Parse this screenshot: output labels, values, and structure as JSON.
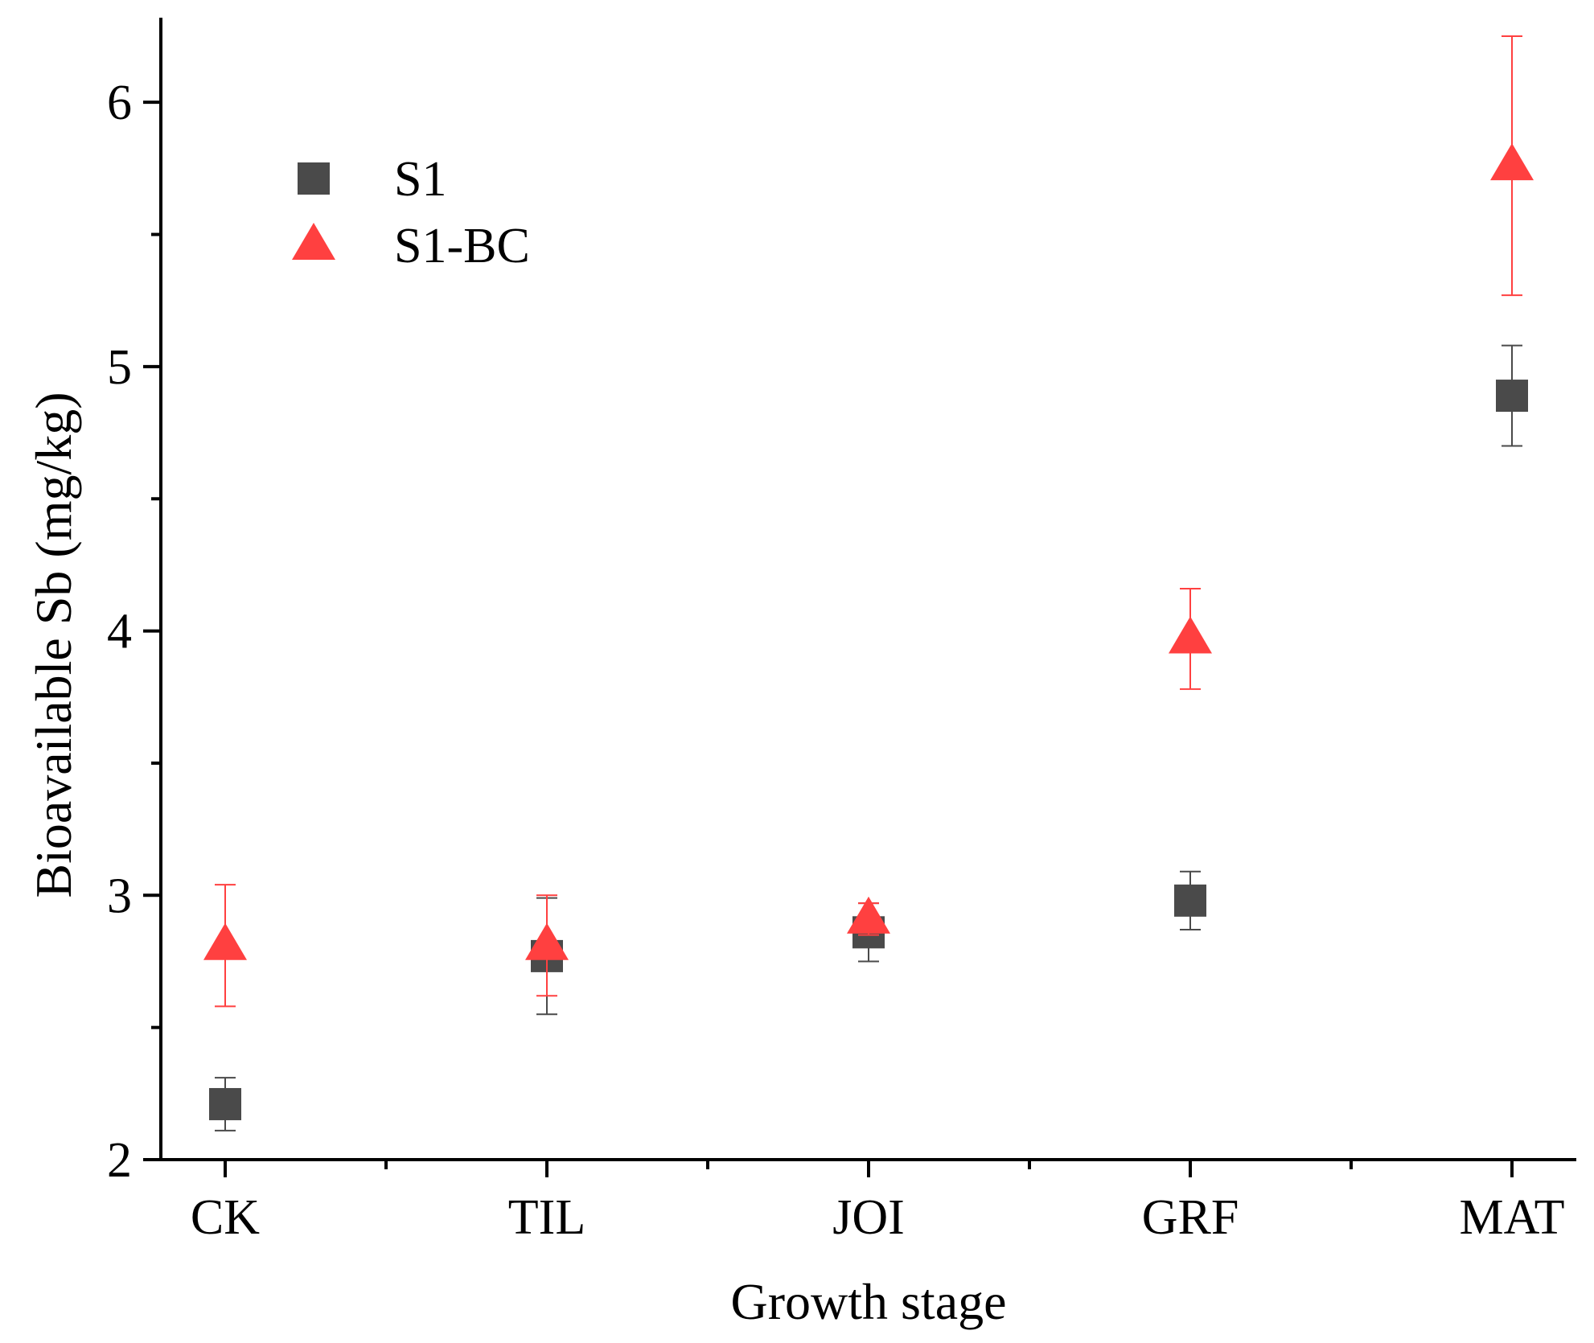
{
  "chart_data": {
    "type": "scatter",
    "title": "",
    "xlabel": "Growth stage",
    "ylabel": "Bioavailable Sb (mg/kg)",
    "categories": [
      "CK",
      "TIL",
      "JOI",
      "GRF",
      "MAT"
    ],
    "ylim": [
      2,
      6.32
    ],
    "yticks": [
      2,
      3,
      4,
      5,
      6
    ],
    "yminor_ticks": [
      2.5,
      3.5,
      4.5,
      5.5
    ],
    "grid": false,
    "legend_position": "top-left",
    "series": [
      {
        "name": "S1",
        "marker": "square",
        "color": "#4a4a4a",
        "error_color": "#4a4a4a",
        "values": [
          2.21,
          2.77,
          2.86,
          2.98,
          4.89
        ],
        "errors": [
          0.1,
          0.22,
          0.11,
          0.11,
          0.19
        ]
      },
      {
        "name": "S1-BC",
        "marker": "triangle",
        "color": "#ff4040",
        "error_color": "#ff4040",
        "values": [
          2.81,
          2.81,
          2.91,
          3.97,
          5.76
        ],
        "errors": [
          0.23,
          0.19,
          0.06,
          0.19,
          0.49
        ]
      }
    ]
  }
}
